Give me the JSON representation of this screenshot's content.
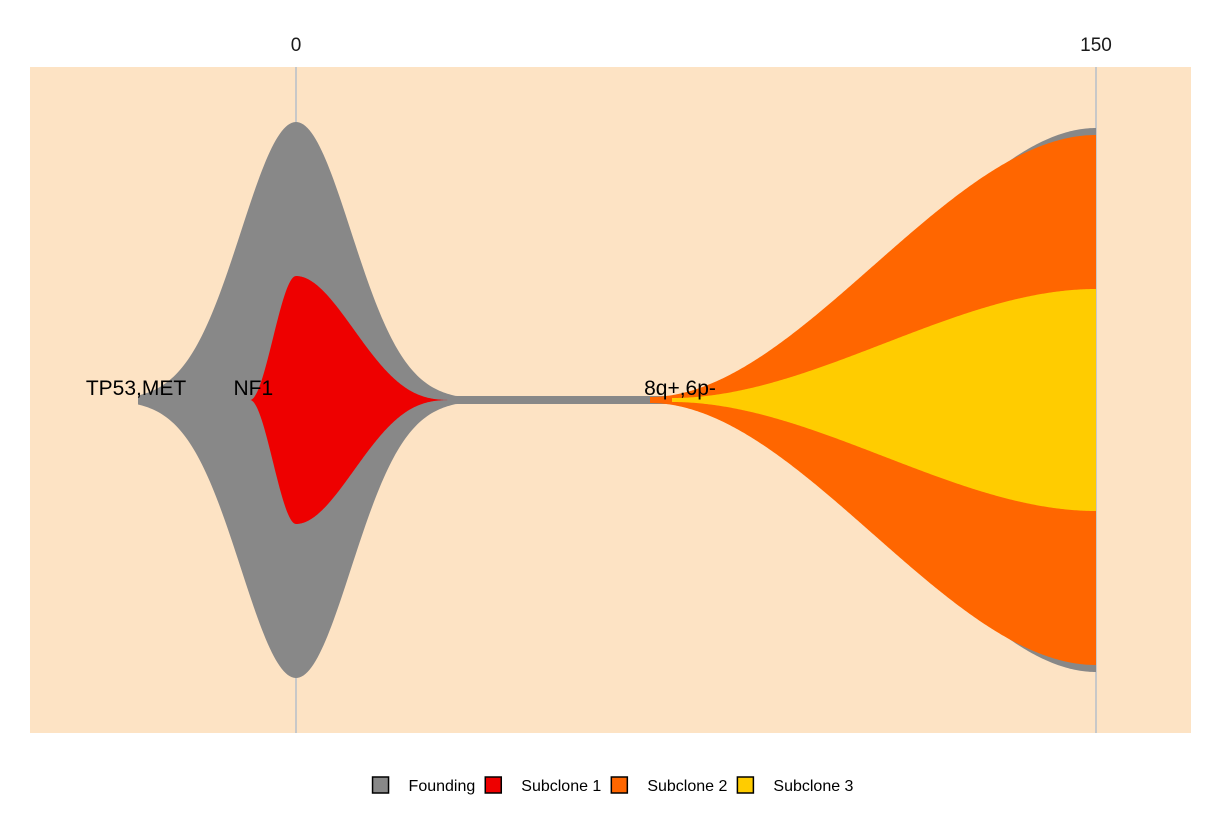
{
  "chart_data": {
    "type": "area",
    "title": "",
    "xlabel": "",
    "ylabel": "",
    "xlim": [
      -50,
      175
    ],
    "timepoints": [
      0,
      150
    ],
    "x_ticks": [
      {
        "value": 0,
        "label": "0"
      },
      {
        "value": 150,
        "label": "150"
      }
    ],
    "background_color": "#fde3c4",
    "series": [
      {
        "name": "Founding",
        "color": "#888888",
        "size_at_timepoints": [
          100,
          96
        ]
      },
      {
        "name": "Subclone 1",
        "color": "#ee0000",
        "size_at_timepoints": [
          45,
          0
        ]
      },
      {
        "name": "Subclone 2",
        "color": "#ff6600",
        "size_at_timepoints": [
          0,
          96
        ]
      },
      {
        "name": "Subclone 3",
        "color": "#ffcc00",
        "size_at_timepoints": [
          0,
          40
        ]
      }
    ],
    "annotations": [
      {
        "text": "TP53,MET",
        "x": -30
      },
      {
        "text": "NF1",
        "x": -8
      },
      {
        "text": "8q+,6p-",
        "x": 72
      }
    ],
    "legend": {
      "placement": "bottom",
      "items": [
        {
          "label": "Founding",
          "color": "#888888"
        },
        {
          "label": "Subclone 1",
          "color": "#ee0000"
        },
        {
          "label": "Subclone 2",
          "color": "#ff6600"
        },
        {
          "label": "Subclone 3",
          "color": "#ffcc00"
        }
      ]
    }
  }
}
